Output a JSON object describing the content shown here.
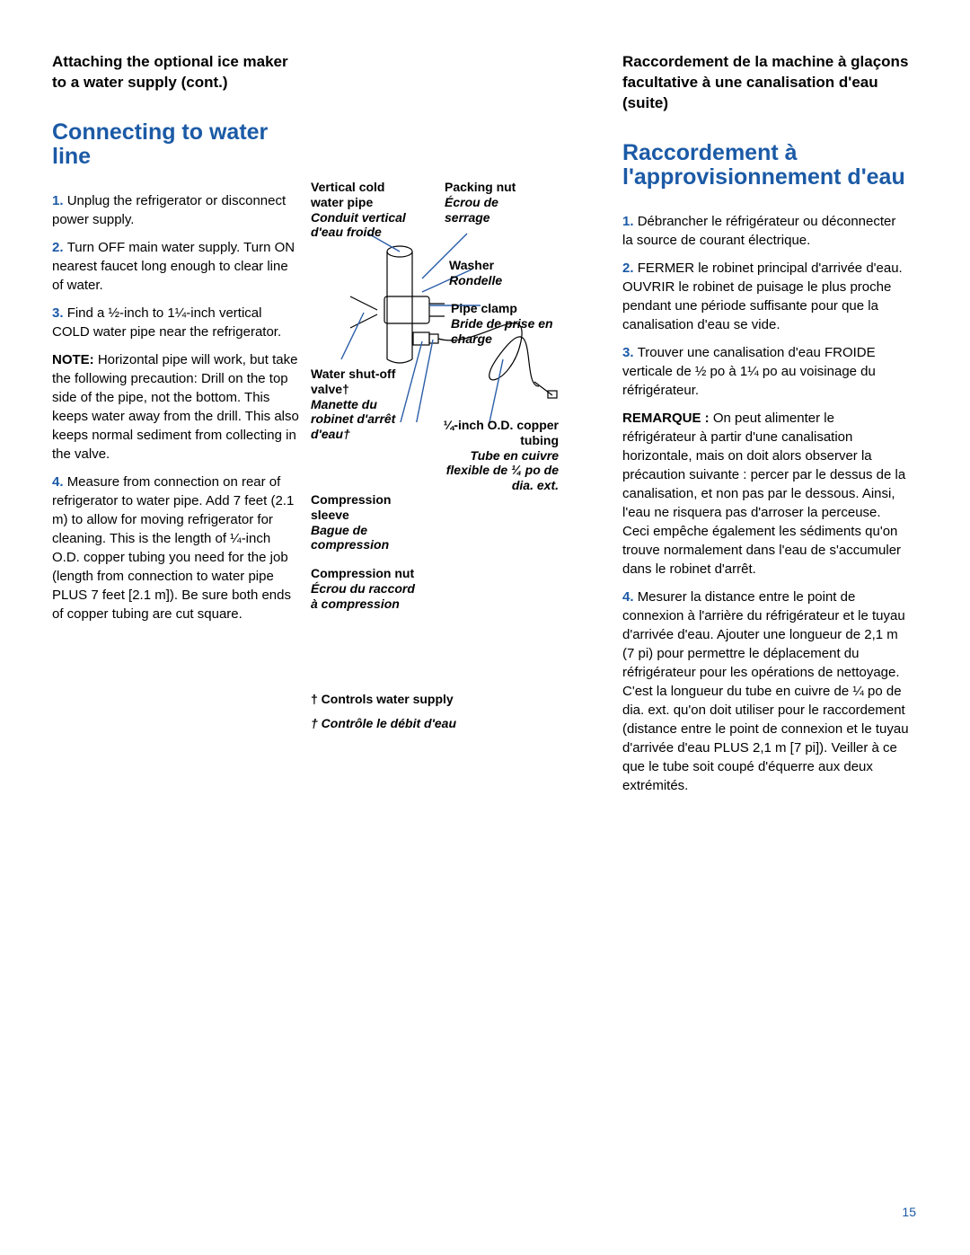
{
  "page_number": "15",
  "colors": {
    "accent": "#1b5aa6",
    "text": "#000000",
    "bg": "#ffffff",
    "diagram_line": "#2b5ea8"
  },
  "left": {
    "header": "Attaching the optional ice maker to a water supply (cont.)",
    "section_title": "Connecting to water line",
    "steps": [
      {
        "num": "1.",
        "text": "Unplug the refrigerator or disconnect power supply."
      },
      {
        "num": "2.",
        "text": "Turn OFF main water supply. Turn ON nearest faucet long enough to clear line of water."
      },
      {
        "num": "3.",
        "text": "Find a ½-inch to 1¼-inch vertical COLD water pipe near the refrigerator.",
        "note_label": "NOTE:",
        "note_text": "Horizontal pipe will work, but take the following precaution: Drill on the top side of the pipe, not the bottom. This keeps water away from the drill. This also keeps normal sediment from collecting in the valve."
      },
      {
        "num": "4.",
        "text": "Measure from connection on rear of refrigerator to water pipe. Add 7 feet (2.1 m) to allow for moving refrigerator for cleaning. This is the length of ¼-inch O.D. copper tubing you need for the job (length from connection to water pipe PLUS 7 feet [2.1 m]). Be sure both ends of copper tubing are cut square."
      }
    ]
  },
  "diagram": {
    "labels": {
      "vertical_pipe_en": "Vertical cold water pipe",
      "vertical_pipe_fr": "Conduit vertical d'eau froide",
      "packing_nut_en": "Packing nut",
      "packing_nut_fr": "Écrou de serrage",
      "washer_en": "Washer",
      "washer_fr": "Rondelle",
      "pipe_clamp_en": "Pipe clamp",
      "pipe_clamp_fr": "Bride de prise en charge",
      "shutoff_en": "Water shut-off valve†",
      "shutoff_fr": "Manette du robinet d'arrêt d'eau†",
      "tubing_en": "¼-inch O.D. copper tubing",
      "tubing_fr": "Tube en cuivre flexible de ¼ po de dia. ext.",
      "sleeve_en": "Compression sleeve",
      "sleeve_fr": "Bague de compression",
      "nut_en": "Compression nut",
      "nut_fr": "Écrou du raccord à compression"
    },
    "footnote_en": "† Controls water supply",
    "footnote_fr": "† Contrôle le débit d'eau"
  },
  "right": {
    "header": "Raccordement de la machine à glaçons facultative à une canalisation d'eau (suite)",
    "section_title": "Raccordement à l'approvisionnement d'eau",
    "steps": [
      {
        "num": "1.",
        "text": "Débrancher le réfrigérateur ou déconnecter la source de courant électrique."
      },
      {
        "num": "2.",
        "text": "FERMER le robinet principal d'arrivée d'eau. OUVRIR le robinet de puisage le plus proche pendant une période suffisante pour que la canalisation d'eau se vide."
      },
      {
        "num": "3.",
        "text": "Trouver une canalisation d'eau FROIDE verticale de ½ po à 1¼ po au voisinage du réfrigérateur.",
        "note_label": "REMARQUE :",
        "note_text": "On peut alimenter le réfrigérateur à partir d'une canalisation horizontale, mais on doit alors observer la précaution suivante : percer par le dessus de la canalisation, et non pas par le dessous. Ainsi, l'eau ne risquera pas d'arroser la perceuse. Ceci empêche également les sédiments qu'on trouve normalement dans l'eau de s'accumuler dans le robinet d'arrêt."
      },
      {
        "num": "4.",
        "text": "Mesurer la distance entre le point de connexion à l'arrière du réfrigérateur et le tuyau d'arrivée d'eau. Ajouter une longueur de 2,1 m (7 pi) pour permettre le déplacement du réfrigérateur pour les opérations de nettoyage. C'est la longueur du tube en cuivre de ¼ po de dia. ext. qu'on doit utiliser pour le raccordement (distance entre le point de connexion et le tuyau d'arrivée d'eau PLUS 2,1 m [7 pi]). Veiller à ce que le tube soit coupé d'équerre aux deux extrémités."
      }
    ]
  }
}
